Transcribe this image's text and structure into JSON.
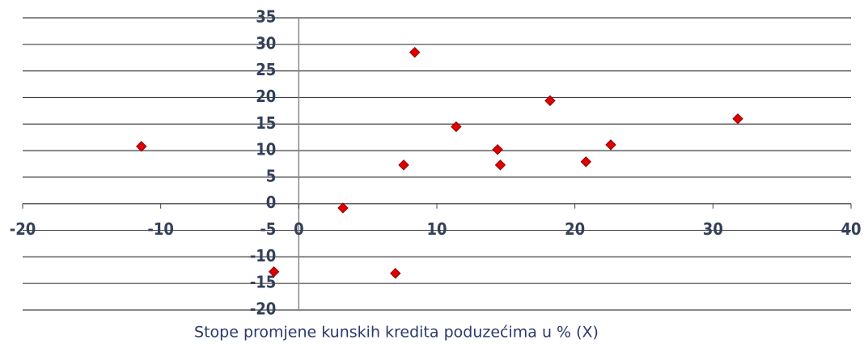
{
  "chart_data": {
    "type": "scatter",
    "x_label": "Stope promjene kunskih kredita poduzećima u % (X)",
    "series": [
      {
        "color": "#e00000",
        "x": [
          -11.4,
          3.2,
          7.6,
          8.4,
          11.4,
          14.4,
          14.6,
          18.2,
          20.8,
          22.6,
          31.8,
          -1.8,
          7.0
        ],
        "values": [
          10.8,
          -0.8,
          7.3,
          28.5,
          14.5,
          10.2,
          7.3,
          19.4,
          7.9,
          11.1,
          16.0,
          -12.8,
          -13.1
        ]
      }
    ],
    "xlim": [
      -20,
      40
    ],
    "xticks": [
      -20,
      -10,
      0,
      10,
      20,
      30,
      40
    ],
    "ylim": [
      -20,
      35
    ],
    "yticks": [
      -20,
      -15,
      -10,
      -5,
      0,
      5,
      10,
      15,
      20,
      25,
      30,
      35
    ],
    "grid": true
  }
}
